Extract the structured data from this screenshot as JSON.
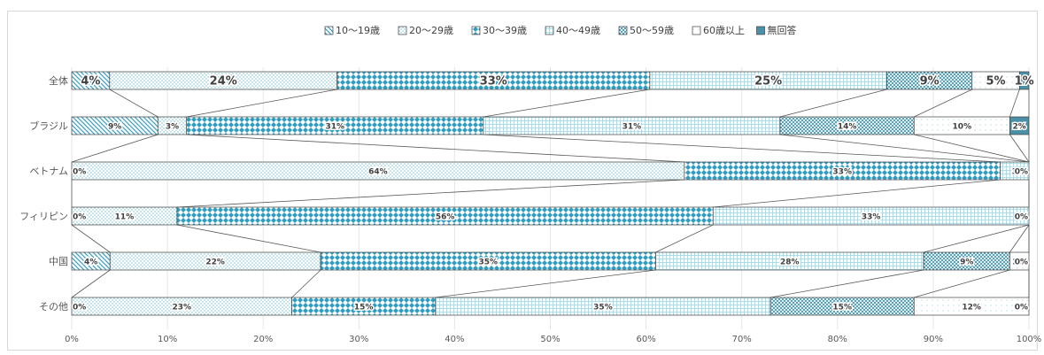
{
  "chart_data": {
    "type": "bar",
    "orientation": "horizontal",
    "stacked": "percent",
    "categories": [
      "全体",
      "ブラジル",
      "ベトナム",
      "フィリピン",
      "中国",
      "その他"
    ],
    "series": [
      {
        "name": "10～19歳",
        "values": [
          4,
          9,
          0,
          0,
          4,
          0
        ],
        "labels": [
          "4%",
          "9%",
          "0%",
          "0%",
          "4%",
          "0%"
        ]
      },
      {
        "name": "20～29歳",
        "values": [
          24,
          3,
          64,
          11,
          22,
          23
        ],
        "labels": [
          "24%",
          "3%",
          "64%",
          "11%",
          "22%",
          "23%"
        ]
      },
      {
        "name": "30～39歳",
        "values": [
          33,
          31,
          33,
          56,
          35,
          15
        ],
        "labels": [
          "33%",
          "31%",
          "33%",
          "56%",
          "35%",
          "15%"
        ]
      },
      {
        "name": "40～49歳",
        "values": [
          25,
          31,
          3,
          33,
          28,
          35
        ],
        "labels": [
          "25%",
          "31%",
          "3",
          "33%",
          "28%",
          "35%"
        ]
      },
      {
        "name": "50～59歳",
        "values": [
          9,
          14,
          0,
          0,
          9,
          15
        ],
        "labels": [
          "9%",
          "14%",
          "",
          "",
          "9%",
          "15%"
        ]
      },
      {
        "name": "60歳以上",
        "values": [
          5,
          10,
          0,
          0,
          2,
          12
        ],
        "labels": [
          "5%",
          "10%",
          "",
          "",
          "2%",
          "12%"
        ]
      },
      {
        "name": "無回答",
        "values": [
          1,
          2,
          0,
          0,
          0,
          0
        ],
        "labels": [
          "1%",
          "2%",
          "0%",
          "0%",
          "0%",
          "0%"
        ]
      }
    ],
    "xticks": [
      "0%",
      "10%",
      "20%",
      "30%",
      "40%",
      "50%",
      "60%",
      "70%",
      "80%",
      "90%",
      "100%"
    ],
    "xlim": [
      0,
      100
    ],
    "grid": true,
    "legend": "top-center",
    "series_lines": true,
    "colors": [
      "#3b9fc0",
      "#bfe3ee",
      "#2f9dbf",
      "#d9eef5",
      "#2e8aa8",
      "#e8f4f8",
      "#1f6f8b"
    ]
  }
}
